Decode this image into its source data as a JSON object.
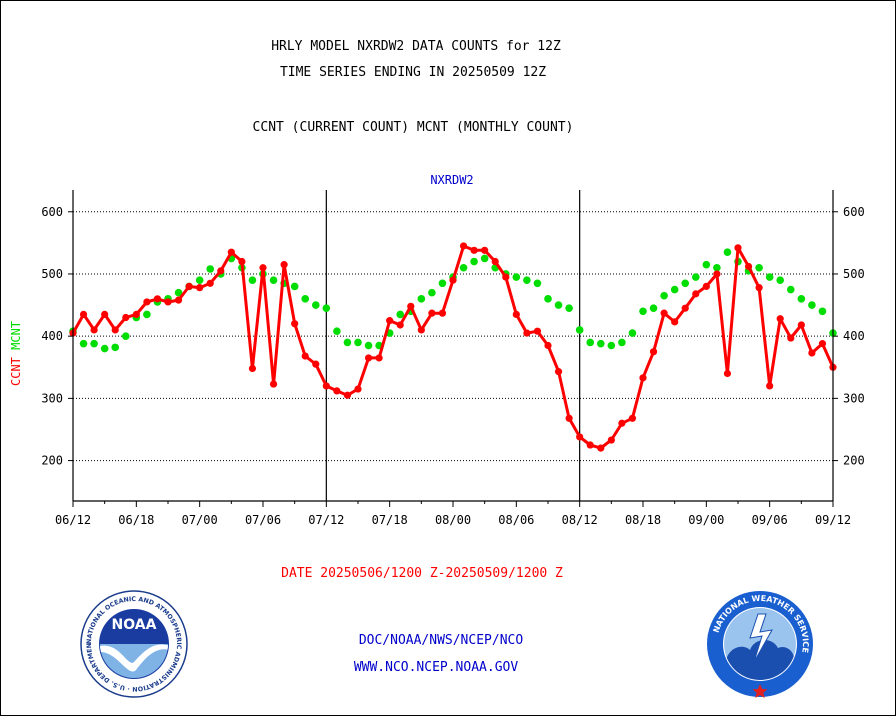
{
  "header": {
    "line1": "HRLY MODEL NXRDW2 DATA COUNTS for 12Z",
    "line2": "TIME SERIES ENDING IN 20250509 12Z",
    "line3": "CCNT (CURRENT COUNT) MCNT (MONTHLY COUNT)"
  },
  "footer": {
    "date_range": "DATE 20250506/1200 Z-20250509/1200 Z",
    "org_path": "DOC/NOAA/NWS/NCEP/NCO",
    "website": "WWW.NCO.NCEP.NOAA.GOV"
  },
  "logos": {
    "noaa": {
      "center_text": "NOAA",
      "ring_text": "NATIONAL OCEANIC AND ATMOSPHERIC ADMINISTRATION · U.S. DEPARTMENT OF COMMERCE"
    },
    "nws": {
      "ring_text": "NATIONAL WEATHER SERVICE"
    }
  },
  "colors": {
    "ccnt": "#ff0000",
    "mcnt": "#00dd00",
    "title": "#0000cc",
    "grid": "#000000"
  },
  "chart_data": {
    "type": "line",
    "title": "NXRDW2",
    "ylabel_left": [
      {
        "text": "CCNT",
        "color": "#ff0000"
      },
      {
        "text": "MCNT",
        "color": "#00dd00"
      }
    ],
    "ylim": [
      135,
      635
    ],
    "yticks": [
      200,
      300,
      400,
      500,
      600
    ],
    "ytick_labels": [
      "200",
      "300",
      "400",
      "500",
      "600"
    ],
    "xticks": [
      0,
      6,
      12,
      18,
      24,
      30,
      36,
      42,
      48,
      54,
      60,
      66,
      72
    ],
    "xtick_labels": [
      "06/12",
      "06/18",
      "07/00",
      "07/06",
      "07/12",
      "07/18",
      "08/00",
      "08/06",
      "08/12",
      "08/18",
      "09/00",
      "09/06",
      "09/12"
    ],
    "xlim": [
      0,
      72
    ],
    "day_dividers": [
      24,
      48
    ],
    "grid": true,
    "x": [
      0,
      1,
      2,
      3,
      4,
      5,
      6,
      7,
      8,
      9,
      10,
      11,
      12,
      13,
      14,
      15,
      16,
      17,
      18,
      19,
      20,
      21,
      22,
      23,
      24,
      25,
      26,
      27,
      28,
      29,
      30,
      31,
      32,
      33,
      34,
      35,
      36,
      37,
      38,
      39,
      40,
      41,
      42,
      43,
      44,
      45,
      46,
      47,
      48,
      49,
      50,
      51,
      52,
      53,
      54,
      55,
      56,
      57,
      58,
      59,
      60,
      61,
      62,
      63,
      64,
      65,
      66,
      67,
      68,
      69,
      70,
      71,
      72
    ],
    "series": [
      {
        "name": "CCNT",
        "color": "#ff0000",
        "values": [
          405,
          435,
          410,
          435,
          410,
          430,
          435,
          455,
          460,
          455,
          458,
          480,
          478,
          485,
          505,
          535,
          520,
          348,
          510,
          323,
          515,
          420,
          368,
          355,
          320,
          312,
          305,
          315,
          365,
          365,
          425,
          418,
          448,
          410,
          437,
          437,
          490,
          545,
          538,
          538,
          520,
          495,
          435,
          405,
          408,
          385,
          343,
          268,
          238,
          225,
          220,
          233,
          260,
          268,
          333,
          375,
          437,
          423,
          445,
          468,
          480,
          500,
          340,
          542,
          512,
          478,
          320,
          428,
          397,
          418,
          373,
          388,
          350
        ]
      },
      {
        "name": "MCNT",
        "color": "#00dd00",
        "values": [
          408,
          388,
          388,
          380,
          382,
          400,
          430,
          435,
          455,
          460,
          470,
          480,
          490,
          508,
          500,
          525,
          510,
          490,
          500,
          490,
          485,
          480,
          460,
          450,
          445,
          408,
          390,
          390,
          385,
          385,
          405,
          435,
          440,
          460,
          470,
          485,
          495,
          510,
          520,
          525,
          510,
          500,
          495,
          490,
          485,
          460,
          450,
          445,
          410,
          390,
          388,
          385,
          390,
          405,
          440,
          445,
          465,
          475,
          485,
          495,
          515,
          510,
          535,
          520,
          505,
          510,
          495,
          490,
          475,
          460,
          450,
          440,
          405
        ]
      }
    ]
  }
}
